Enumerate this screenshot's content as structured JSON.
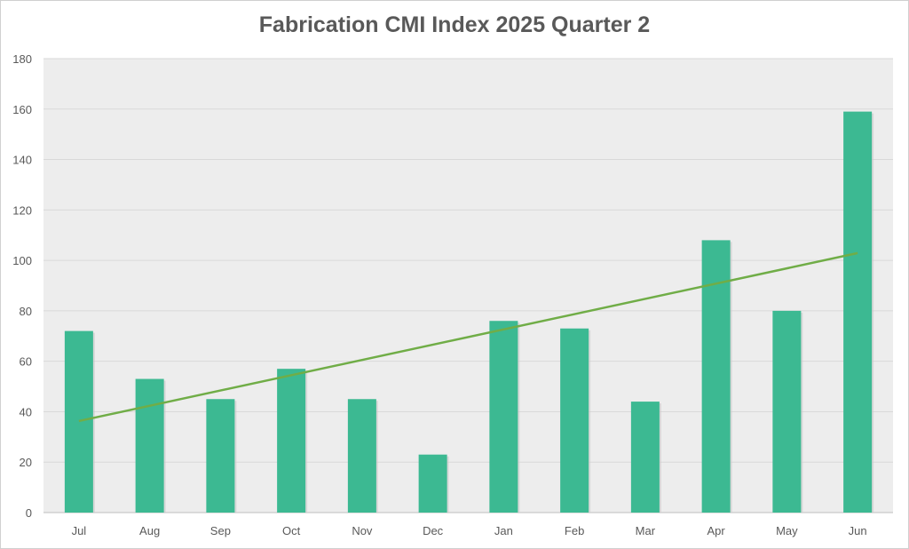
{
  "chart_data": {
    "type": "bar",
    "title": "Fabrication CMI Index 2025 Quarter 2",
    "xlabel": "",
    "ylabel": "",
    "categories": [
      "Jul",
      "Aug",
      "Sep",
      "Oct",
      "Nov",
      "Dec",
      "Jan",
      "Feb",
      "Mar",
      "Apr",
      "May",
      "Jun"
    ],
    "values": [
      72,
      53,
      45,
      57,
      45,
      23,
      76,
      73,
      44,
      108,
      80,
      159
    ],
    "ylim": [
      0,
      180
    ],
    "yticks": [
      0,
      20,
      40,
      60,
      80,
      100,
      120,
      140,
      160,
      180
    ],
    "grid": true,
    "trendline": {
      "type": "linear",
      "start": 36.3,
      "end": 102.9
    },
    "colors": {
      "bar": "#3cb992",
      "trend": "#70ad47",
      "plot_bg": "#ededed",
      "grid": "#d9d9d9"
    }
  }
}
